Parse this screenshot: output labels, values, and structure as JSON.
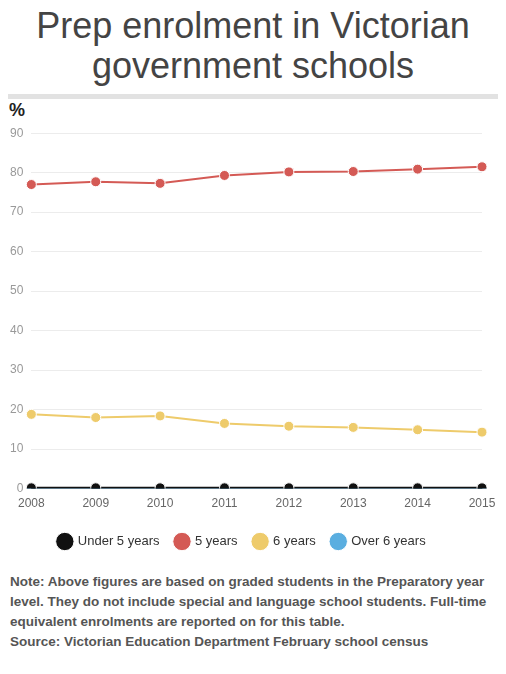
{
  "chart_data": {
    "type": "line",
    "title": "Prep enrolment in Victorian government schools",
    "y_label": "%",
    "categories": [
      "2008",
      "2009",
      "2010",
      "2011",
      "2012",
      "2013",
      "2014",
      "2015"
    ],
    "series": [
      {
        "name": "Under 5 years",
        "color": "#111111",
        "values": [
          0.2,
          0.2,
          0.2,
          0.2,
          0.2,
          0.2,
          0.2,
          0.2
        ]
      },
      {
        "name": "5 years",
        "color": "#d45a55",
        "values": [
          77.0,
          77.7,
          77.3,
          79.3,
          80.2,
          80.3,
          80.9,
          81.5
        ]
      },
      {
        "name": "6 years",
        "color": "#eecb6b",
        "values": [
          18.8,
          18.0,
          18.4,
          16.5,
          15.8,
          15.5,
          14.9,
          14.3
        ]
      },
      {
        "name": "Over 6 years",
        "color": "#5aaee0",
        "values": [
          0.1,
          0.1,
          0.1,
          0.1,
          0.1,
          0.1,
          0.1,
          0.1
        ]
      }
    ],
    "ylim": [
      0,
      90
    ],
    "yticks": [
      0,
      10,
      20,
      30,
      40,
      50,
      60,
      70,
      80,
      90
    ],
    "grid": true,
    "legend": "bottom",
    "marker": "circle",
    "note": "Note: Above figures are based on graded students in the Preparatory year level. They do not include special and language school students. Full-time equivalent enrolments are reported on for this table.",
    "source": "Source: Victorian Education Department February school census"
  }
}
